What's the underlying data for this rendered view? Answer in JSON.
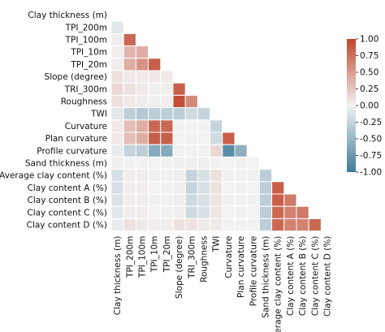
{
  "chart_data": {
    "type": "heatmap",
    "subtype": "lower-triangle correlation matrix",
    "variables": [
      "Clay thickness (m)",
      "TPI_200m",
      "TPI_100m",
      "TPI_10m",
      "TPI_20m",
      "Slope (degree)",
      "TRI_300m",
      "Roughness",
      "TWI",
      "Curvature",
      "Plan curvature",
      "Profile curvature",
      "Sand thickness (m)",
      "Average clay content (%)",
      "Clay content A (%)",
      "Clay content B (%)",
      "Clay content C (%)",
      "Clay content D (%)"
    ],
    "matrix": [
      [],
      [
        -0.1
      ],
      [
        0.02,
        0.8
      ],
      [
        0.03,
        0.35,
        0.4
      ],
      [
        0.03,
        0.4,
        0.55,
        0.85
      ],
      [
        0.1,
        0.05,
        0.05,
        0.05,
        0.05
      ],
      [
        0.15,
        0.1,
        0.05,
        0.02,
        0.02,
        0.85
      ],
      [
        0.1,
        0.05,
        0.03,
        0.02,
        0.02,
        0.95,
        0.6
      ],
      [
        -0.1,
        -0.3,
        -0.35,
        -0.3,
        -0.3,
        -0.3,
        -0.2,
        -0.25
      ],
      [
        0.05,
        0.3,
        0.4,
        0.8,
        0.8,
        0.0,
        0.0,
        0.0,
        -0.25
      ],
      [
        0.05,
        0.3,
        0.4,
        0.85,
        0.85,
        0.0,
        0.0,
        0.0,
        -0.2,
        0.85
      ],
      [
        -0.05,
        -0.25,
        -0.3,
        -0.6,
        -0.6,
        0.0,
        0.0,
        0.0,
        0.15,
        -0.85,
        -0.55
      ],
      [
        0.02,
        0.0,
        0.0,
        0.0,
        0.0,
        0.02,
        0.02,
        0.02,
        0.0,
        0.0,
        0.0,
        0.0
      ],
      [
        -0.15,
        0.03,
        0.03,
        0.0,
        0.0,
        0.03,
        -0.25,
        -0.15,
        0.1,
        0.0,
        0.0,
        0.0,
        -0.3
      ],
      [
        -0.15,
        0.03,
        0.03,
        0.0,
        0.0,
        0.03,
        -0.25,
        -0.15,
        0.1,
        0.0,
        0.0,
        0.0,
        -0.3,
        0.85
      ],
      [
        -0.12,
        0.03,
        0.03,
        0.0,
        0.0,
        0.03,
        -0.2,
        -0.15,
        0.08,
        0.0,
        0.0,
        0.0,
        -0.3,
        0.85,
        0.7
      ],
      [
        -0.1,
        0.03,
        0.03,
        0.0,
        0.0,
        0.03,
        -0.2,
        -0.15,
        0.08,
        0.0,
        0.0,
        0.0,
        -0.3,
        0.8,
        0.65,
        0.7
      ],
      [
        -0.05,
        0.1,
        0.05,
        0.03,
        0.03,
        0.1,
        0.1,
        0.05,
        0.05,
        0.0,
        0.0,
        0.0,
        -0.3,
        0.8,
        0.65,
        0.65,
        0.8
      ]
    ],
    "colorbar": {
      "min": -1.0,
      "max": 1.0,
      "ticks": [
        "1.00",
        "0.75",
        "0.50",
        "0.25",
        "0.00",
        "-0.25",
        "-0.50",
        "-0.75",
        "-1.00"
      ],
      "colors": {
        "negative": "#3f7a99",
        "center": "#f2f2f2",
        "positive": "#c0452c"
      }
    }
  }
}
